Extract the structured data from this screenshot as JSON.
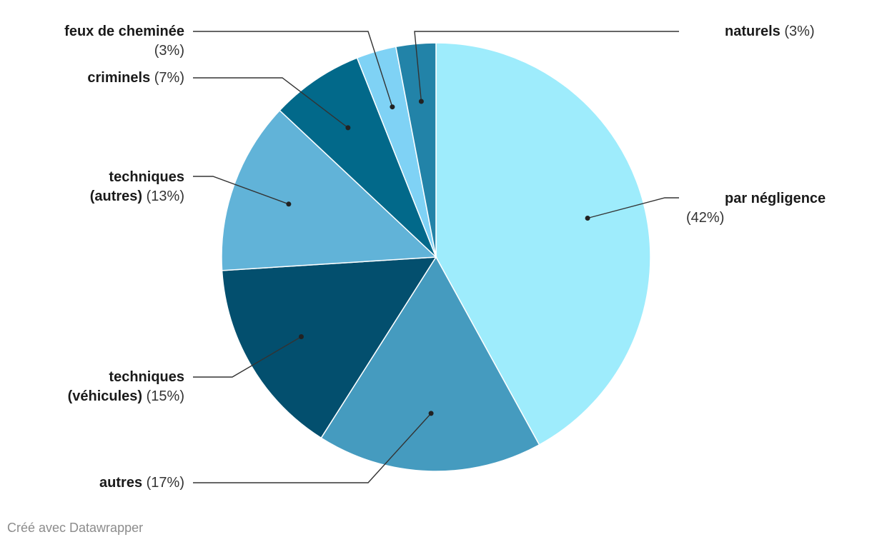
{
  "chart_data": {
    "type": "pie",
    "slices": [
      {
        "name": "par négligence",
        "value": 42,
        "pct_label": "(42%)",
        "color": "#9eecfc"
      },
      {
        "name": "autres",
        "value": 17,
        "pct_label": "(17%)",
        "color": "#459bbf"
      },
      {
        "name": "techniques (véhicules)",
        "value": 15,
        "pct_label": "(15%)",
        "color": "#034f6e"
      },
      {
        "name": "techniques (autres)",
        "value": 13,
        "pct_label": "(13%)",
        "color": "#61b3d8"
      },
      {
        "name": "criminels",
        "value": 7,
        "pct_label": "(7%)",
        "color": "#02698a"
      },
      {
        "name": "feux de cheminée",
        "value": 3,
        "pct_label": "(3%)",
        "color": "#7fd2f5"
      },
      {
        "name": "naturels",
        "value": 3,
        "pct_label": "(3%)",
        "color": "#2283a8"
      }
    ],
    "legend": "none"
  },
  "labels": [
    {
      "lines": [
        {
          "name": "naturels",
          "pct": "(3%)"
        }
      ]
    },
    {
      "lines": [
        {
          "name": "par négligence",
          "pct": ""
        },
        {
          "name": "",
          "pct": "(42%)"
        }
      ]
    },
    {
      "lines": [
        {
          "name": "autres",
          "pct": "(17%)"
        }
      ]
    },
    {
      "lines": [
        {
          "name": "techniques",
          "pct": ""
        },
        {
          "name": "(véhicules)",
          "pct": "(15%)"
        }
      ]
    },
    {
      "lines": [
        {
          "name": "techniques",
          "pct": ""
        },
        {
          "name": "(autres)",
          "pct": "(13%)"
        }
      ]
    },
    {
      "lines": [
        {
          "name": "criminels",
          "pct": "(7%)"
        }
      ]
    },
    {
      "lines": [
        {
          "name": "feux de cheminée",
          "pct": ""
        },
        {
          "name": "",
          "pct": "(3%)"
        }
      ]
    }
  ],
  "credit": "Créé avec Datawrapper"
}
